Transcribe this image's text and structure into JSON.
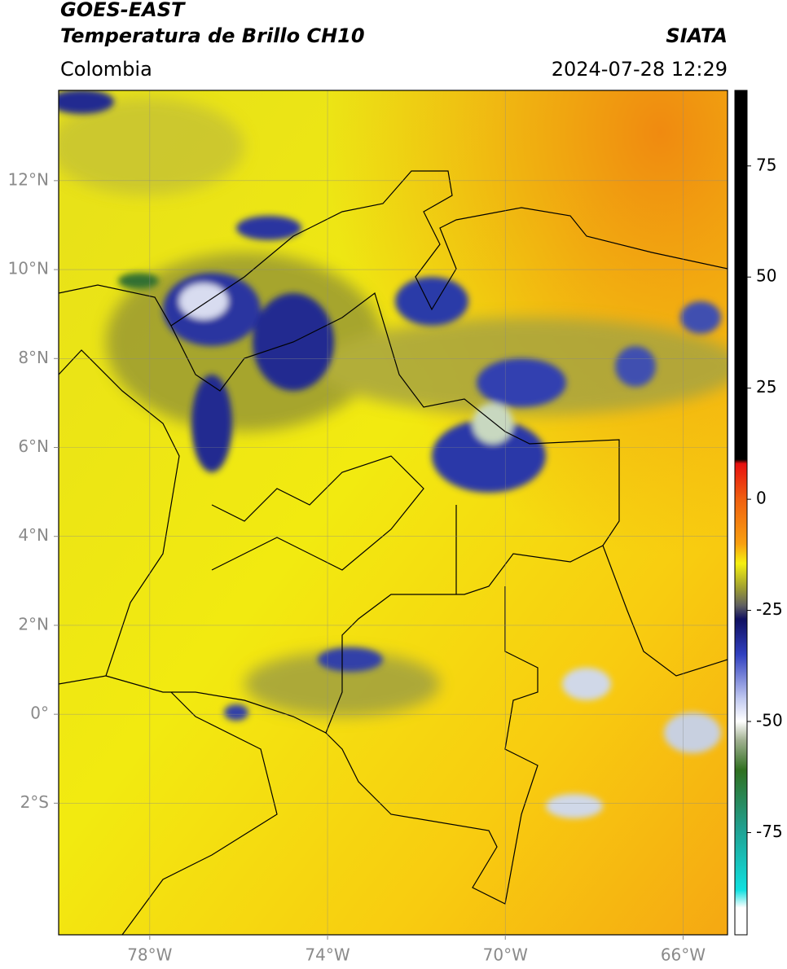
{
  "header": {
    "title": "GOES-EAST",
    "subtitle": "Temperatura de Brillo CH10",
    "region": "Colombia",
    "source": "SIATA",
    "datetime": "2024-07-28 12:29"
  },
  "map": {
    "xlim": [
      -80.05,
      -65
    ],
    "ylim": [
      -4.96,
      14.03
    ],
    "xticks": [
      {
        "value": -78,
        "label": "78°W"
      },
      {
        "value": -74,
        "label": "74°W"
      },
      {
        "value": -70,
        "label": "70°W"
      },
      {
        "value": -66,
        "label": "66°W"
      }
    ],
    "yticks": [
      {
        "value": 12,
        "label": "12°N"
      },
      {
        "value": 10,
        "label": "10°N"
      },
      {
        "value": 8,
        "label": "8°N"
      },
      {
        "value": 6,
        "label": "6°N"
      },
      {
        "value": 4,
        "label": "4°N"
      },
      {
        "value": 2,
        "label": "2°N"
      },
      {
        "value": 0,
        "label": "0°"
      },
      {
        "value": -2,
        "label": "2°S"
      }
    ],
    "grid": true
  },
  "colorbar": {
    "lim": [
      -98,
      92
    ],
    "ticks": [
      75,
      50,
      25,
      0,
      -25,
      -50,
      -75
    ]
  }
}
